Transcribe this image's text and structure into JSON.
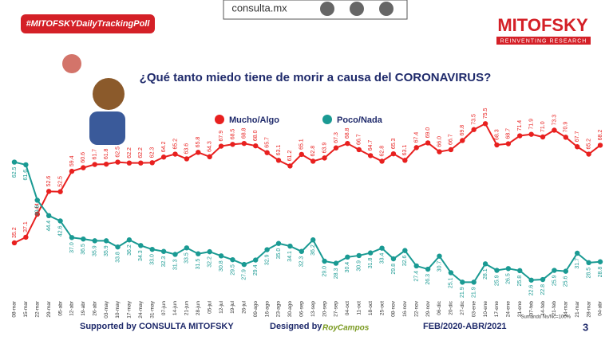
{
  "header": {
    "hashtag": "#MITOFSKYDailyTrackingPoll",
    "site": "consulta.mx",
    "brand": "MITOFSKY",
    "tagline": "REINVENTING RESEARCH"
  },
  "chart_data": {
    "type": "line",
    "title": "¿Qué tanto miedo tiene de morir a causa del CORONAVIRUS?",
    "categories": [
      "08-mar",
      "15-mar",
      "22-mar",
      "29-mar",
      "05-abr",
      "12-abr",
      "19-abr",
      "26-abr",
      "03-may",
      "10-may",
      "17-may",
      "24-may",
      "31-may",
      "07-jun",
      "14-jun",
      "21-jun",
      "28-jun",
      "05-jul",
      "12-jul",
      "19-jul",
      "26-jul",
      "09-ago",
      "16-ago",
      "23-ago",
      "30-ago",
      "06-sep",
      "13-sep",
      "20-sep",
      "27-sep",
      "04-oct",
      "11-oct",
      "18-oct",
      "25-oct",
      "08-nov",
      "16-nov",
      "22-nov",
      "29-nov",
      "06-dic",
      "20-dic",
      "27-dic",
      "03-ene",
      "10-ene",
      "17-ene",
      "24-ene",
      "31-ene",
      "07-feb",
      "14-feb",
      "21-feb",
      "14-mar",
      "21-mar",
      "28-mar",
      "04-abr"
    ],
    "ylim": [
      15,
      85
    ],
    "series": [
      {
        "name": "Mucho/Algo",
        "color": "#e8201f",
        "values": [
          35.2,
          37.1,
          44.9,
          52.6,
          52.5,
          59.4,
          60.6,
          61.7,
          61.8,
          62.5,
          62.2,
          62.2,
          62.3,
          64.2,
          65.2,
          63.6,
          65.8,
          64.3,
          67.9,
          68.5,
          68.8,
          68.0,
          65.7,
          63.1,
          61.2,
          65.1,
          62.8,
          63.9,
          67.3,
          68.8,
          66.7,
          64.7,
          62.8,
          65.3,
          63.1,
          67.4,
          69.0,
          66.0,
          66.7,
          69.8,
          73.5,
          75.5,
          68.3,
          68.7,
          71.4,
          71.9,
          71.0,
          73.3,
          70.9,
          67.7,
          65.2,
          68.2
        ],
        "value_labels": [
          "35.2",
          "37.1",
          "44.9",
          "52.6",
          "52.5",
          "59.4",
          "60.6",
          "61.7",
          "61.8",
          "62.5",
          "62.2",
          "62.2",
          "62.3",
          "64.2",
          "65.2",
          "63.6",
          "65.8",
          "64.3",
          "67.9",
          "68.5",
          "68.8",
          "68.0",
          "65.7",
          "63.1",
          "61.2",
          "65.1",
          "62.8",
          "63.9",
          "67.3",
          "68.8",
          "66.7",
          "64.7",
          "62.8",
          "65.3",
          "63.1",
          "67.4",
          "69.0",
          "66.0",
          "66.7",
          "69.8",
          "73.5",
          "75.5",
          "68.3",
          "68.7",
          "71.4",
          "71.9",
          "71.0",
          "73.3",
          "70.9",
          "67.7",
          "65.2",
          "68.2"
        ]
      },
      {
        "name": "Poco/Nada",
        "color": "#1a9a93",
        "values": [
          62.5,
          61.6,
          49.6,
          44.4,
          42.6,
          37.0,
          36.5,
          35.9,
          35.9,
          33.8,
          36.2,
          34.3,
          33.0,
          32.3,
          31.3,
          33.5,
          31.5,
          32.2,
          30.8,
          29.5,
          27.9,
          29.4,
          32.9,
          35.0,
          34.1,
          32.3,
          36.2,
          29.0,
          28.3,
          30.4,
          30.9,
          31.8,
          33.4,
          29.8,
          32.6,
          27.4,
          26.3,
          30.7,
          25.1,
          21.9,
          21.9,
          28.1,
          25.9,
          26.5,
          25.8,
          22.6,
          22.8,
          25.9,
          25.6,
          31.7,
          28.5,
          28.8
        ],
        "value_labels": [
          "62.5",
          "61.6",
          "49.6",
          "44.4",
          "42.6",
          "37.0",
          "36.5",
          "35.9",
          "35.9",
          "33.8",
          "36.2",
          "34.3",
          "33.0",
          "32.3",
          "31.3",
          "33.5",
          "31.5",
          "32.2",
          "30.8",
          "29.5",
          "27.9",
          "29.4",
          "32.9",
          "35.0",
          "34.1",
          "32.3",
          "36.2",
          "29.0",
          "28.3",
          "30.4",
          "30.9",
          "31.8",
          "33.4",
          "29.8",
          "32.6",
          "27.4",
          "26.3",
          "30.7",
          "25.1",
          "21.9",
          "21.9",
          "28.1",
          "25.9",
          "26.5",
          "25.8",
          "22.6",
          "22.8",
          "25.9",
          "25.6",
          "31.7",
          "28.5",
          "28.8"
        ]
      }
    ]
  },
  "footer": {
    "supported": "Supported by  CONSULTA  MITOFSKY",
    "designed": "Designed by",
    "designer": "RoyCampos",
    "period": "FEB/2020-ABR/2021",
    "note": "Sumando Ns/Nc=100%",
    "page": "3"
  }
}
